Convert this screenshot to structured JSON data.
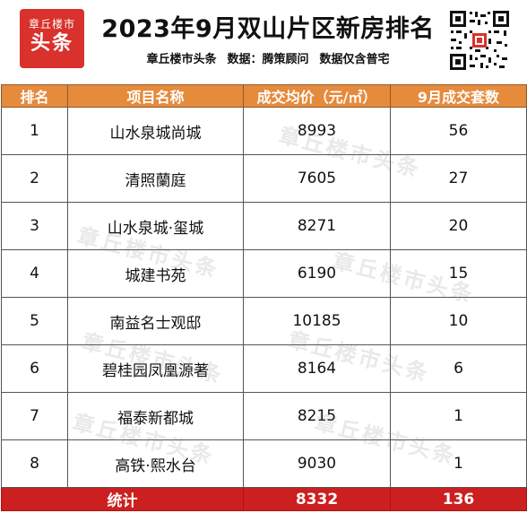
{
  "header": {
    "logo_line1": "章丘楼市",
    "logo_line2": "头条",
    "title": "2023年9月双山片区新房排名",
    "subtitle_source": "章丘楼市头条",
    "subtitle_data": "数据：",
    "subtitle_vendor": "腾策顾问",
    "subtitle_note": "数据仅含普宅"
  },
  "table": {
    "columns": [
      "排名",
      "项目名称",
      "成交均价（元/㎡）",
      "9月成交套数"
    ],
    "rows": [
      {
        "rank": "1",
        "name": "山水泉城尚城",
        "price": "8993",
        "units": "56"
      },
      {
        "rank": "2",
        "name": "清照蘭庭",
        "price": "7605",
        "units": "27"
      },
      {
        "rank": "3",
        "name": "山水泉城·玺城",
        "price": "8271",
        "units": "20"
      },
      {
        "rank": "4",
        "name": "城建书苑",
        "price": "6190",
        "units": "15"
      },
      {
        "rank": "5",
        "name": "南益名士观邸",
        "price": "10185",
        "units": "10"
      },
      {
        "rank": "6",
        "name": "碧桂园凤凰源著",
        "price": "8164",
        "units": "6"
      },
      {
        "rank": "7",
        "name": "福泰新都城",
        "price": "8215",
        "units": "1"
      },
      {
        "rank": "8",
        "name": "高铁·熙水台",
        "price": "9030",
        "units": "1"
      }
    ],
    "total": {
      "label": "统计",
      "price": "8332",
      "units": "136"
    }
  },
  "watermark": "章丘楼市头条",
  "colors": {
    "header_accent": "#e68a3c",
    "total_row": "#cc1f1f",
    "logo": "#d9312b"
  },
  "icons": {
    "logo": "brand-logo",
    "qr": "qr-code-icon"
  }
}
